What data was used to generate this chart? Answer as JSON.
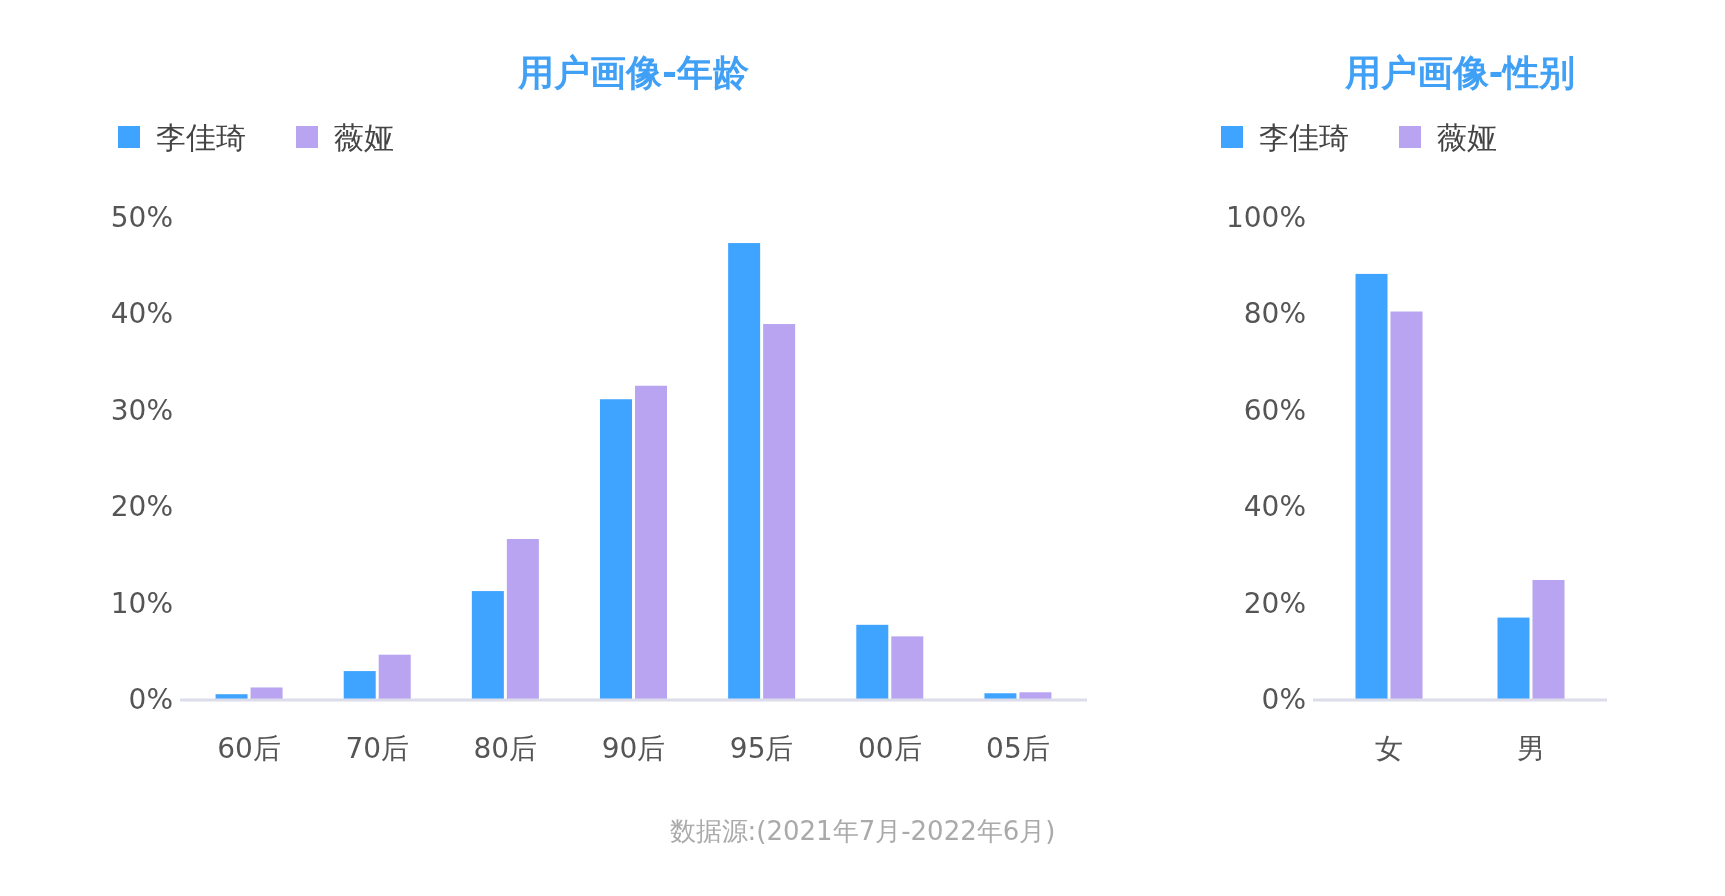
{
  "chart_data": [
    {
      "type": "bar",
      "title": "用户画像-年龄",
      "categories": [
        "60后",
        "70后",
        "80后",
        "90后",
        "95后",
        "00后",
        "05后"
      ],
      "series": [
        {
          "name": "李佳琦",
          "color": "#3fa4ff",
          "values": [
            0.6,
            3.0,
            11.3,
            31.2,
            47.4,
            7.8,
            0.7
          ]
        },
        {
          "name": "薇娅",
          "color": "#b8a4f0",
          "values": [
            1.3,
            4.7,
            16.7,
            32.6,
            39.0,
            6.6,
            0.8
          ]
        }
      ],
      "ylim": [
        0,
        50
      ],
      "yticks": [
        {
          "value": 0,
          "label": "0%"
        },
        {
          "value": 10,
          "label": "10%"
        },
        {
          "value": 20,
          "label": "20%"
        },
        {
          "value": 30,
          "label": "30%"
        },
        {
          "value": 40,
          "label": "40%"
        },
        {
          "value": 50,
          "label": "50%"
        }
      ],
      "legend": "top left",
      "grid": false,
      "annotations": [
        "数据源:(2021年7月-2022年6月)"
      ]
    },
    {
      "type": "bar",
      "title": "用户画像-性别",
      "categories": [
        "女",
        "男"
      ],
      "series": [
        {
          "name": "李佳琦",
          "color": "#3fa4ff",
          "values": [
            88.4,
            17.1
          ]
        },
        {
          "name": "薇娅",
          "color": "#b8a4f0",
          "values": [
            80.6,
            24.9
          ]
        }
      ],
      "ylim": [
        0,
        100
      ],
      "yticks": [
        {
          "value": 0,
          "label": "0%"
        },
        {
          "value": 20,
          "label": "20%"
        },
        {
          "value": 40,
          "label": "40%"
        },
        {
          "value": 60,
          "label": "60%"
        },
        {
          "value": 80,
          "label": "80%"
        },
        {
          "value": 100,
          "label": "100%"
        }
      ],
      "legend": "top left",
      "grid": false
    }
  ]
}
